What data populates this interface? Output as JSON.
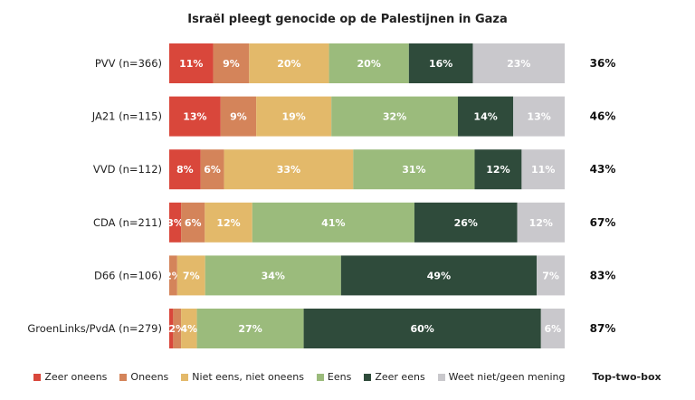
{
  "chart_data": {
    "type": "bar",
    "orientation": "horizontal-stacked-100",
    "title": "Israël pleegt genocide op de Palestijnen in Gaza",
    "categories": [
      "PVV (n=366)",
      "JA21 (n=115)",
      "VVD (n=112)",
      "CDA (n=211)",
      "D66 (n=106)",
      "GroenLinks/PvdA (n=279)"
    ],
    "series": [
      {
        "name": "Zeer oneens",
        "color": "#d9473b",
        "values": [
          11,
          13,
          8,
          3,
          0,
          1
        ],
        "labels": [
          "11%",
          "13%",
          "8%",
          "3%",
          "",
          ""
        ]
      },
      {
        "name": "Oneens",
        "color": "#d4845a",
        "values": [
          9,
          9,
          6,
          6,
          2,
          2
        ],
        "labels": [
          "9%",
          "9%",
          "6%",
          "6%",
          "2%",
          "2%"
        ]
      },
      {
        "name": "Niet eens, niet oneens",
        "color": "#e3b96a",
        "values": [
          20,
          19,
          33,
          12,
          7,
          4
        ],
        "labels": [
          "20%",
          "19%",
          "33%",
          "12%",
          "7%",
          "4%"
        ]
      },
      {
        "name": "Eens",
        "color": "#9bbb7c",
        "values": [
          20,
          32,
          31,
          41,
          34,
          27
        ],
        "labels": [
          "20%",
          "32%",
          "31%",
          "41%",
          "34%",
          "27%"
        ]
      },
      {
        "name": "Zeer eens",
        "color": "#2f4b3b",
        "values": [
          16,
          14,
          12,
          26,
          49,
          60
        ],
        "labels": [
          "16%",
          "14%",
          "12%",
          "26%",
          "49%",
          "60%"
        ]
      },
      {
        "name": "Weet niet/geen mening",
        "color": "#c9c8cc",
        "values": [
          23,
          13,
          11,
          12,
          7,
          6
        ],
        "labels": [
          "23%",
          "13%",
          "11%",
          "12%",
          "7%",
          "6%"
        ]
      }
    ],
    "top_two_box": {
      "label": "Top-two-box",
      "values": [
        "36%",
        "46%",
        "43%",
        "67%",
        "83%",
        "87%"
      ]
    },
    "xlim": [
      0,
      100
    ],
    "legend_position": "bottom"
  }
}
